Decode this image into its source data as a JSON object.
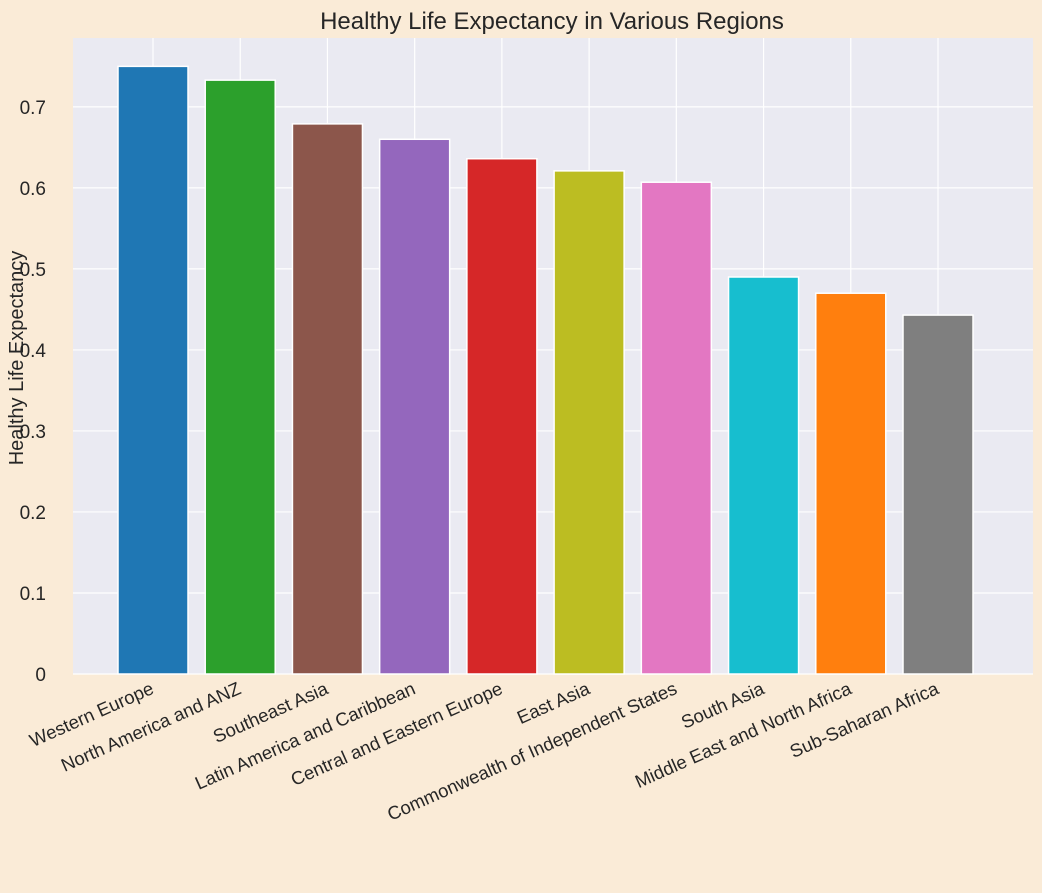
{
  "chart_data": {
    "type": "bar",
    "title": "Healthy Life Expectancy in Various Regions",
    "xlabel": "",
    "ylabel": "Healthy Life Expectancy",
    "ylim": [
      0,
      0.785
    ],
    "yticks": [
      0,
      0.1,
      0.2,
      0.3,
      0.4,
      0.5,
      0.6,
      0.7
    ],
    "ytick_labels": [
      "0",
      "0.1",
      "0.2",
      "0.3",
      "0.4",
      "0.5",
      "0.6",
      "0.7"
    ],
    "grid": true,
    "categories": [
      "Western Europe",
      "North America and ANZ",
      "Southeast Asia",
      "Latin America and Caribbean",
      "Central and Eastern Europe",
      "East Asia",
      "Commonwealth of Independent States",
      "South Asia",
      "Middle East and North Africa",
      "Sub-Saharan Africa"
    ],
    "values": [
      0.75,
      0.733,
      0.679,
      0.66,
      0.636,
      0.621,
      0.607,
      0.49,
      0.47,
      0.443
    ],
    "colors": [
      "#1f77b4",
      "#2ca02c",
      "#8c564b",
      "#9467bd",
      "#d62728",
      "#bcbd22",
      "#e377c2",
      "#17becf",
      "#ff7f0e",
      "#7f7f7f"
    ],
    "background_color": "#faebd7",
    "plot_background_color": "#eaeaf2"
  }
}
